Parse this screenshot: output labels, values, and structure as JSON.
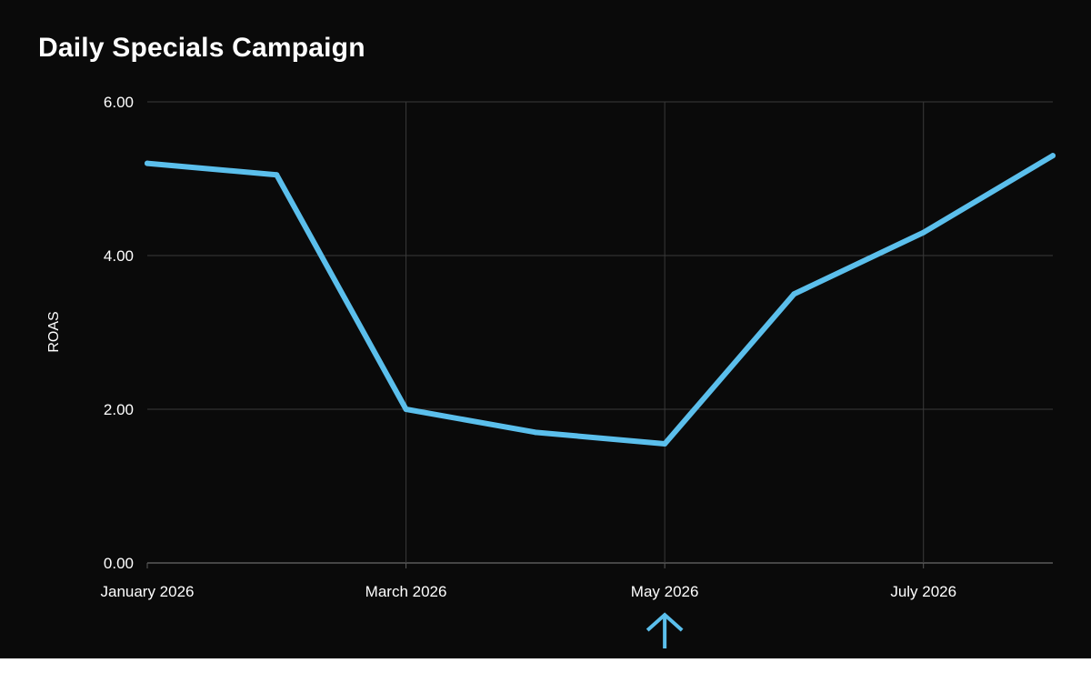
{
  "title": "Daily Specials Campaign",
  "chart_data": {
    "type": "line",
    "title": "Daily Specials Campaign",
    "xlabel": "",
    "ylabel": "ROAS",
    "x": [
      "2026-01",
      "2026-02",
      "2026-03",
      "2026-04",
      "2026-05",
      "2026-06",
      "2026-07",
      "2026-08"
    ],
    "xtick_labels": [
      "January 2026",
      "March 2026",
      "May 2026",
      "July 2026"
    ],
    "xtick_positions": [
      0,
      2,
      4,
      6
    ],
    "series": [
      {
        "values": [
          5.2,
          5.05,
          2.0,
          1.7,
          1.55,
          3.5,
          4.3,
          5.3
        ],
        "color": "#5bbfec"
      }
    ],
    "ylim": [
      0,
      6
    ],
    "yticks": [
      "0.00",
      "2.00",
      "4.00",
      "6.00"
    ],
    "ytick_values": [
      0,
      2,
      4,
      6
    ],
    "grid": true,
    "annotation": {
      "type": "arrow",
      "at": "2026-05",
      "color": "#5bbfec"
    }
  },
  "colors": {
    "background": "#0a0a0a",
    "grid": "#3a3a3a",
    "axis": "#5a5a5a",
    "text": "#ffffff",
    "line": "#5bbfec"
  }
}
